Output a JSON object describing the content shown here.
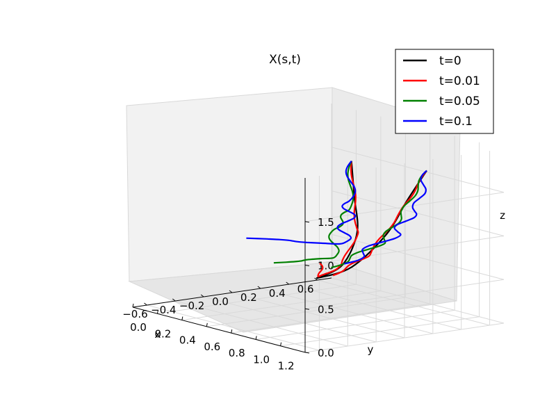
{
  "chart_data": {
    "type": "line",
    "projection": "3d",
    "title": "X(s,t)",
    "xlabel": "x",
    "ylabel": "y",
    "zlabel": "z",
    "xlim": [
      -0.7,
      0.7
    ],
    "ylim": [
      0.0,
      1.4
    ],
    "zlim": [
      0.0,
      2.0
    ],
    "xticks": [
      -0.6,
      -0.4,
      -0.2,
      0.0,
      0.2,
      0.4,
      0.6
    ],
    "yticks": [
      0.0,
      0.2,
      0.4,
      0.6,
      0.8,
      1.0,
      1.2
    ],
    "zticks": [
      0.0,
      0.5,
      1.0,
      1.5
    ],
    "xtick_labels": [
      "−0.6",
      "−0.4",
      "−0.2",
      "0.0",
      "0.2",
      "0.4",
      "0.6"
    ],
    "ytick_labels": [
      "0.0",
      "0.2",
      "0.4",
      "0.6",
      "0.8",
      "1.0",
      "1.2"
    ],
    "ztick_labels": [
      "0.0",
      "0.5",
      "1.0",
      "1.5"
    ],
    "grid": true,
    "legend_position": "top-right",
    "series": [
      {
        "name": "t=0",
        "color": "#000000",
        "points": [
          [
            0.55,
            0.05,
            0.05
          ],
          [
            0.3,
            0.55,
            0.45
          ],
          [
            0.1,
            0.9,
            1.0
          ],
          [
            -0.05,
            1.05,
            1.5
          ],
          [
            -0.2,
            1.2,
            2.0
          ]
        ],
        "points_b": [
          [
            0.55,
            0.05,
            0.05
          ],
          [
            0.45,
            0.45,
            0.35
          ],
          [
            0.35,
            0.85,
            0.9
          ],
          [
            0.28,
            1.1,
            1.4
          ],
          [
            0.2,
            1.35,
            1.85
          ]
        ]
      },
      {
        "name": "t=0.01",
        "color": "#ff0000",
        "points": [
          [
            0.6,
            0.02,
            0.2
          ],
          [
            0.45,
            0.2,
            0.15
          ],
          [
            0.3,
            0.55,
            0.45
          ],
          [
            0.1,
            0.9,
            1.0
          ],
          [
            -0.05,
            1.05,
            1.5
          ],
          [
            -0.2,
            1.2,
            2.0
          ]
        ],
        "points_b": [
          [
            0.45,
            0.3,
            0.2
          ],
          [
            0.35,
            0.7,
            0.6
          ],
          [
            0.28,
            1.05,
            1.25
          ],
          [
            0.2,
            1.35,
            1.85
          ]
        ]
      },
      {
        "name": "t=0.05",
        "color": "#008000",
        "points": [
          [
            0.25,
            0.05,
            0.3
          ],
          [
            0.45,
            0.3,
            0.4
          ],
          [
            0.2,
            0.6,
            0.9
          ],
          [
            0.0,
            0.95,
            1.3
          ],
          [
            -0.2,
            1.2,
            2.0
          ]
        ],
        "points_b": [
          [
            0.35,
            0.4,
            0.35
          ],
          [
            0.4,
            0.75,
            0.75
          ],
          [
            0.3,
            1.05,
            1.25
          ],
          [
            0.2,
            1.35,
            1.85
          ]
        ]
      },
      {
        "name": "t=0.1",
        "color": "#0000ff",
        "points": [
          [
            0.1,
            0.0,
            0.6
          ],
          [
            0.5,
            0.3,
            0.55
          ],
          [
            0.25,
            0.65,
            1.0
          ],
          [
            0.0,
            0.95,
            1.4
          ],
          [
            -0.2,
            1.2,
            2.0
          ]
        ],
        "points_b": [
          [
            0.4,
            0.45,
            0.4
          ],
          [
            0.45,
            0.8,
            0.85
          ],
          [
            0.35,
            1.1,
            1.3
          ],
          [
            0.2,
            1.35,
            1.85
          ]
        ]
      }
    ]
  }
}
